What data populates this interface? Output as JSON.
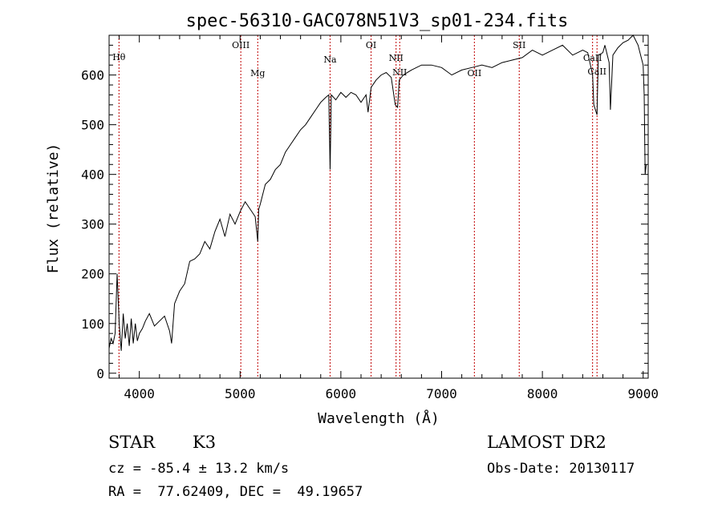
{
  "chart_data": {
    "type": "line",
    "title": "spec-56310-GAC078N51V3_sp01-234.fits",
    "xlabel": "Wavelength (Å)",
    "ylabel": "Flux (relative)",
    "xlim": [
      3700,
      9050
    ],
    "ylim": [
      -10,
      680
    ],
    "xticks": [
      4000,
      5000,
      6000,
      7000,
      8000,
      9000
    ],
    "yticks": [
      0,
      100,
      200,
      300,
      400,
      500,
      600
    ],
    "grid": false,
    "series": [
      {
        "x": [
          3700,
          3720,
          3740,
          3760,
          3780,
          3800,
          3820,
          3840,
          3860,
          3880,
          3900,
          3920,
          3940,
          3960,
          3980,
          4000,
          4030,
          4060,
          4100,
          4150,
          4200,
          4250,
          4300,
          4320,
          4350,
          4400,
          4450,
          4500,
          4550,
          4600,
          4650,
          4700,
          4750,
          4800,
          4850,
          4900,
          4950,
          5000,
          5050,
          5100,
          5150,
          5175,
          5185,
          5200,
          5250,
          5300,
          5350,
          5400,
          5450,
          5500,
          5550,
          5600,
          5650,
          5700,
          5750,
          5800,
          5850,
          5880,
          5893,
          5905,
          5950,
          6000,
          6050,
          6100,
          6150,
          6200,
          6250,
          6270,
          6300,
          6350,
          6400,
          6450,
          6500,
          6540,
          6563,
          6580,
          6620,
          6700,
          6800,
          6900,
          7000,
          7100,
          7200,
          7300,
          7400,
          7500,
          7600,
          7700,
          7800,
          7900,
          8000,
          8100,
          8200,
          8300,
          8400,
          8450,
          8498,
          8510,
          8542,
          8555,
          8600,
          8620,
          8662,
          8675,
          8700,
          8750,
          8800,
          8850,
          8900,
          8950,
          9000,
          9010,
          9020,
          9030
        ],
        "y": [
          50,
          70,
          60,
          80,
          200,
          100,
          45,
          120,
          70,
          100,
          55,
          110,
          60,
          100,
          65,
          80,
          90,
          105,
          120,
          95,
          105,
          115,
          85,
          60,
          140,
          165,
          180,
          225,
          230,
          240,
          265,
          250,
          285,
          310,
          275,
          320,
          300,
          325,
          345,
          330,
          315,
          265,
          330,
          340,
          380,
          390,
          410,
          420,
          445,
          460,
          475,
          490,
          500,
          515,
          530,
          545,
          555,
          560,
          410,
          560,
          550,
          565,
          555,
          565,
          560,
          545,
          560,
          525,
          575,
          590,
          600,
          605,
          595,
          540,
          535,
          590,
          600,
          610,
          620,
          620,
          615,
          600,
          610,
          615,
          620,
          615,
          625,
          630,
          635,
          650,
          640,
          650,
          660,
          640,
          650,
          645,
          600,
          540,
          520,
          640,
          645,
          660,
          625,
          530,
          640,
          655,
          665,
          670,
          680,
          660,
          620,
          560,
          400,
          420
        ]
      }
    ],
    "annotations": [
      {
        "label": "Hθ",
        "x": 3798
      },
      {
        "label": "OIII",
        "x": 5007
      },
      {
        "label": "Mg",
        "x": 5175
      },
      {
        "label": "Na",
        "x": 5893
      },
      {
        "label": "OI",
        "x": 6300
      },
      {
        "label": "NII",
        "x": 6548
      },
      {
        "label": "NII",
        "x": 6584
      },
      {
        "label": "OII",
        "x": 7325
      },
      {
        "label": "SII",
        "x": 7770
      },
      {
        "label": "CaII",
        "x": 8498
      },
      {
        "label": "CaII",
        "x": 8542
      }
    ]
  },
  "info": {
    "object_class": "STAR",
    "subclass": "K3",
    "survey": "LAMOST DR2",
    "cz": "cz = -85.4 ± 13.2 km/s",
    "obs_date": "Obs-Date: 20130117",
    "coords": "RA =  77.62409, DEC =  49.19657"
  }
}
